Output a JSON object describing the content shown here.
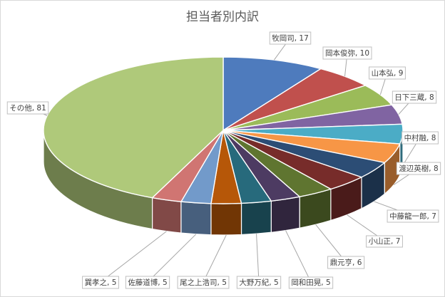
{
  "chart_data": {
    "type": "pie",
    "title": "担当者別内訳",
    "categories": [
      "牧岡司",
      "岡本俊弥",
      "山本弘",
      "日下三蔵",
      "中村融",
      "渡辺英樹",
      "中藤龍一郎",
      "小山正",
      "鼎元亨",
      "岡和田晃",
      "大野万紀",
      "尾之上浩司",
      "佐藤道博",
      "巽孝之",
      "その他"
    ],
    "values": [
      17,
      10,
      9,
      8,
      8,
      8,
      7,
      7,
      6,
      5,
      5,
      5,
      5,
      5,
      81
    ],
    "colors": [
      "#4e7bbd",
      "#c0504d",
      "#9bbb59",
      "#8064a2",
      "#4bacc6",
      "#f79646",
      "#2c4d75",
      "#772c2a",
      "#5f7530",
      "#4d3b62",
      "#276a7c",
      "#b65708",
      "#729aca",
      "#d07572",
      "#afc97a"
    ],
    "labels": [
      "牧岡司, 17",
      "岡本俊弥, 10",
      "山本弘, 9",
      "日下三蔵, 8",
      "中村融, 8",
      "渡辺英樹, 8",
      "中藤龍一郎, 7",
      "小山正, 7",
      "鼎元亨, 6",
      "岡和田晃, 5",
      "大野万紀, 5",
      "尾之上浩司, 5",
      "佐藤道博, 5",
      "巽孝之, 5",
      "その他, 81"
    ],
    "legend": "none",
    "style": "3d-pie"
  }
}
